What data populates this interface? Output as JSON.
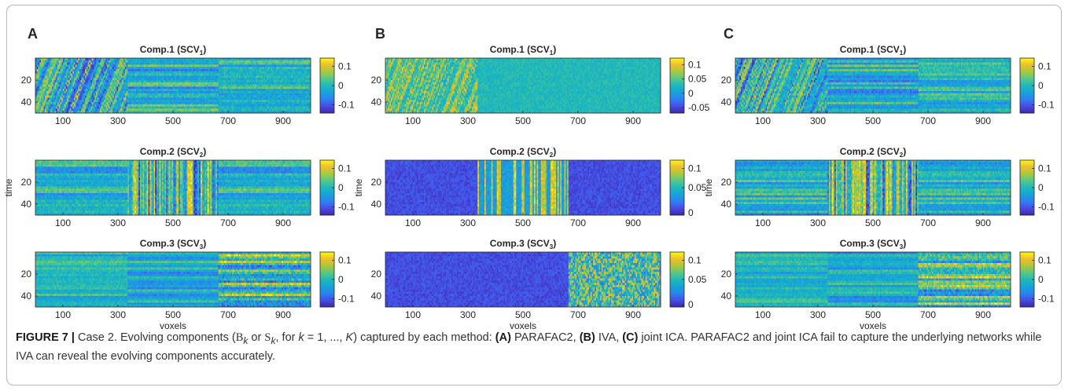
{
  "figure": {
    "panels": [
      {
        "label": "A",
        "method": "PARAFAC2",
        "ylabel": "time",
        "xlabel": "voxels",
        "subplots": [
          {
            "title": "Comp.1 (SCV",
            "title_sub": "1",
            "title_end": ")",
            "pattern": "A1",
            "x_ticks": [
              "100",
              "300",
              "500",
              "700",
              "900"
            ],
            "y_ticks": [
              "20",
              "40"
            ],
            "colorbar_ticks": [
              "0.1",
              "0",
              "-0.1"
            ]
          },
          {
            "title": "Comp.2 (SCV",
            "title_sub": "2",
            "title_end": ")",
            "pattern": "A2",
            "x_ticks": [
              "100",
              "300",
              "500",
              "700",
              "900"
            ],
            "y_ticks": [
              "20",
              "40"
            ],
            "colorbar_ticks": [
              "0.1",
              "0",
              "-0.1"
            ]
          },
          {
            "title": "Comp.3 (SCV",
            "title_sub": "3",
            "title_end": ")",
            "pattern": "A3",
            "x_ticks": [
              "100",
              "300",
              "500",
              "700",
              "900"
            ],
            "y_ticks": [
              "20",
              "40"
            ],
            "colorbar_ticks": [
              "0.1",
              "0",
              "-0.1"
            ]
          }
        ]
      },
      {
        "label": "B",
        "method": "IVA",
        "ylabel": "time",
        "xlabel": "voxels",
        "subplots": [
          {
            "title": "Comp.1 (SCV",
            "title_sub": "1",
            "title_end": ")",
            "pattern": "B1",
            "x_ticks": [
              "100",
              "300",
              "500",
              "700",
              "900"
            ],
            "y_ticks": [
              "20",
              "40"
            ],
            "colorbar_ticks": [
              "0.1",
              "0.05",
              "0",
              "-0.05"
            ]
          },
          {
            "title": "Comp.2 (SCV",
            "title_sub": "2",
            "title_end": ")",
            "pattern": "B2",
            "x_ticks": [
              "100",
              "300",
              "500",
              "700",
              "900"
            ],
            "y_ticks": [
              "20",
              "40"
            ],
            "colorbar_ticks": [
              "0.1",
              "0.05",
              "0"
            ]
          },
          {
            "title": "Comp.3 (SCV",
            "title_sub": "3",
            "title_end": ")",
            "pattern": "B3",
            "x_ticks": [
              "100",
              "300",
              "500",
              "700",
              "900"
            ],
            "y_ticks": [
              "20",
              "40"
            ],
            "colorbar_ticks": [
              "0.1",
              "0.05",
              "0"
            ]
          }
        ]
      },
      {
        "label": "C",
        "method": "joint ICA",
        "ylabel": "time",
        "xlabel": "voxels",
        "subplots": [
          {
            "title": "Comp.1 (SCV",
            "title_sub": "1",
            "title_end": ")",
            "pattern": "C1",
            "x_ticks": [
              "100",
              "300",
              "500",
              "700",
              "900"
            ],
            "y_ticks": [
              "20",
              "40"
            ],
            "colorbar_ticks": [
              "0.1",
              "0",
              "-0.1"
            ]
          },
          {
            "title": "Comp.2 (SCV",
            "title_sub": "2",
            "title_end": ")",
            "pattern": "C2",
            "x_ticks": [
              "100",
              "300",
              "500",
              "700",
              "900"
            ],
            "y_ticks": [
              "20",
              "40"
            ],
            "colorbar_ticks": [
              "0.1",
              "0",
              "-0.1"
            ]
          },
          {
            "title": "Comp.3 (SCV",
            "title_sub": "3",
            "title_end": ")",
            "pattern": "C3",
            "x_ticks": [
              "100",
              "300",
              "500",
              "700",
              "900"
            ],
            "y_ticks": [
              "20",
              "40"
            ],
            "colorbar_ticks": [
              "0.1",
              "0",
              "-0.1"
            ]
          }
        ]
      }
    ]
  },
  "caption": {
    "figure_label": "FIGURE 7 |",
    "t1": " Case 2. Evolving components (",
    "b_sym": "B",
    "k_sub": "k",
    "t_or": " or ",
    "s_sym": "S",
    "t_for": ", for ",
    "k_var": "k",
    "t_range": " = 1, ..., ",
    "K_var": "K",
    "t2": ") captured by each method: ",
    "tag_a": "(A)",
    "m_a": " PARAFAC2, ",
    "tag_b": "(B)",
    "m_b": " IVA, ",
    "tag_c": "(C)",
    "m_c": " joint ICA. PARAFAC2 and joint ICA fail to capture the underlying networks while IVA can reveal the evolving components accurately."
  },
  "colors": {
    "colormap": "parula",
    "low": "#3e26a8",
    "mid": "#1fa9c2",
    "high": "#f9fb0e"
  }
}
